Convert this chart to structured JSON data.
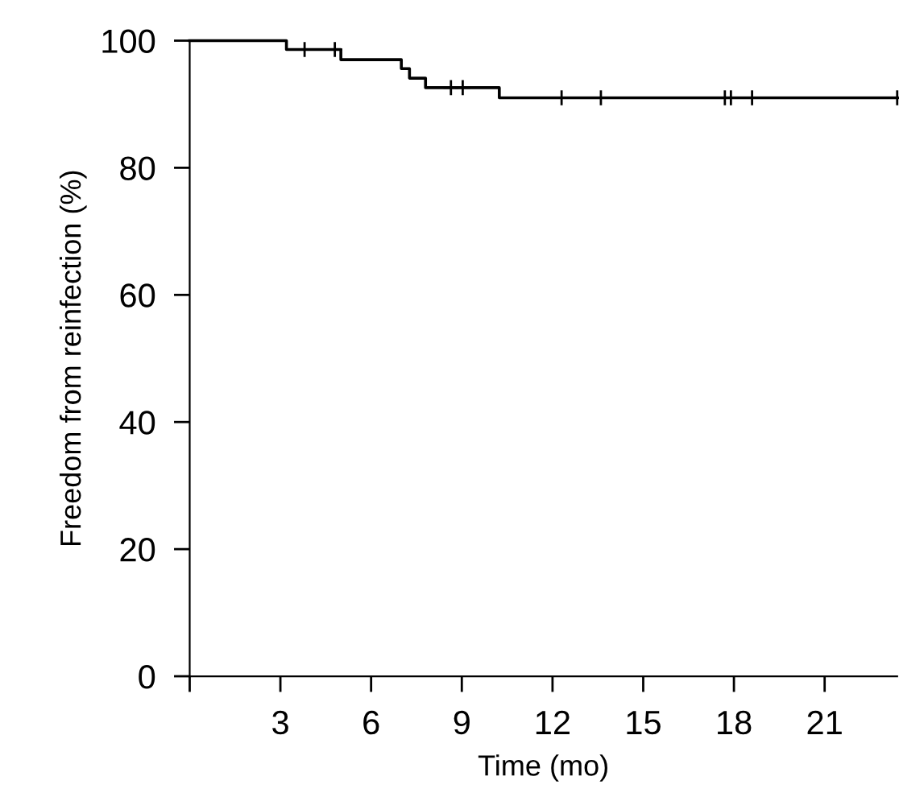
{
  "chart_data": {
    "type": "step",
    "xlabel": "Time (mo)",
    "ylabel": "Freedom from reinfection (%)",
    "xlim": [
      0,
      23.4
    ],
    "ylim": [
      0,
      100
    ],
    "xticks": [
      {
        "value": 0,
        "label": null
      },
      3,
      6,
      9,
      12,
      15,
      18,
      21
    ],
    "yticks": [
      0,
      20,
      40,
      60,
      80,
      100
    ],
    "grid": false,
    "legend": false,
    "series": [
      {
        "color": "#000000",
        "x": [
          0,
          3.2,
          5.0,
          7.0,
          7.27,
          7.8,
          10.24,
          23.4
        ],
        "values": [
          100,
          98.6,
          97.0,
          95.6,
          94.1,
          92.6,
          91.0,
          91.0
        ]
      },
      {
        "type": "scatter",
        "marker": "cross",
        "color": "#000000",
        "x": [
          3.8,
          4.8,
          8.64,
          9.03,
          12.3,
          13.6,
          17.7,
          17.9,
          18.6,
          23.4
        ],
        "values": [
          98.6,
          98.6,
          92.6,
          92.6,
          91.0,
          91.0,
          91.0,
          91.0,
          91.0,
          91.0
        ]
      }
    ]
  }
}
